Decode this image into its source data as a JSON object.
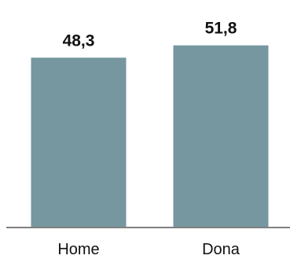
{
  "chart_data": {
    "type": "bar",
    "categories": [
      "Home",
      "Dona"
    ],
    "values": [
      48.3,
      51.8
    ],
    "value_labels": [
      "48,3",
      "51,8"
    ],
    "title": "",
    "xlabel": "",
    "ylabel": "",
    "ylim": [
      0,
      60
    ],
    "grid": false,
    "legend": "none",
    "colors": {
      "bar": "#7697a0",
      "axis": "#808080",
      "text": "#111111"
    }
  }
}
